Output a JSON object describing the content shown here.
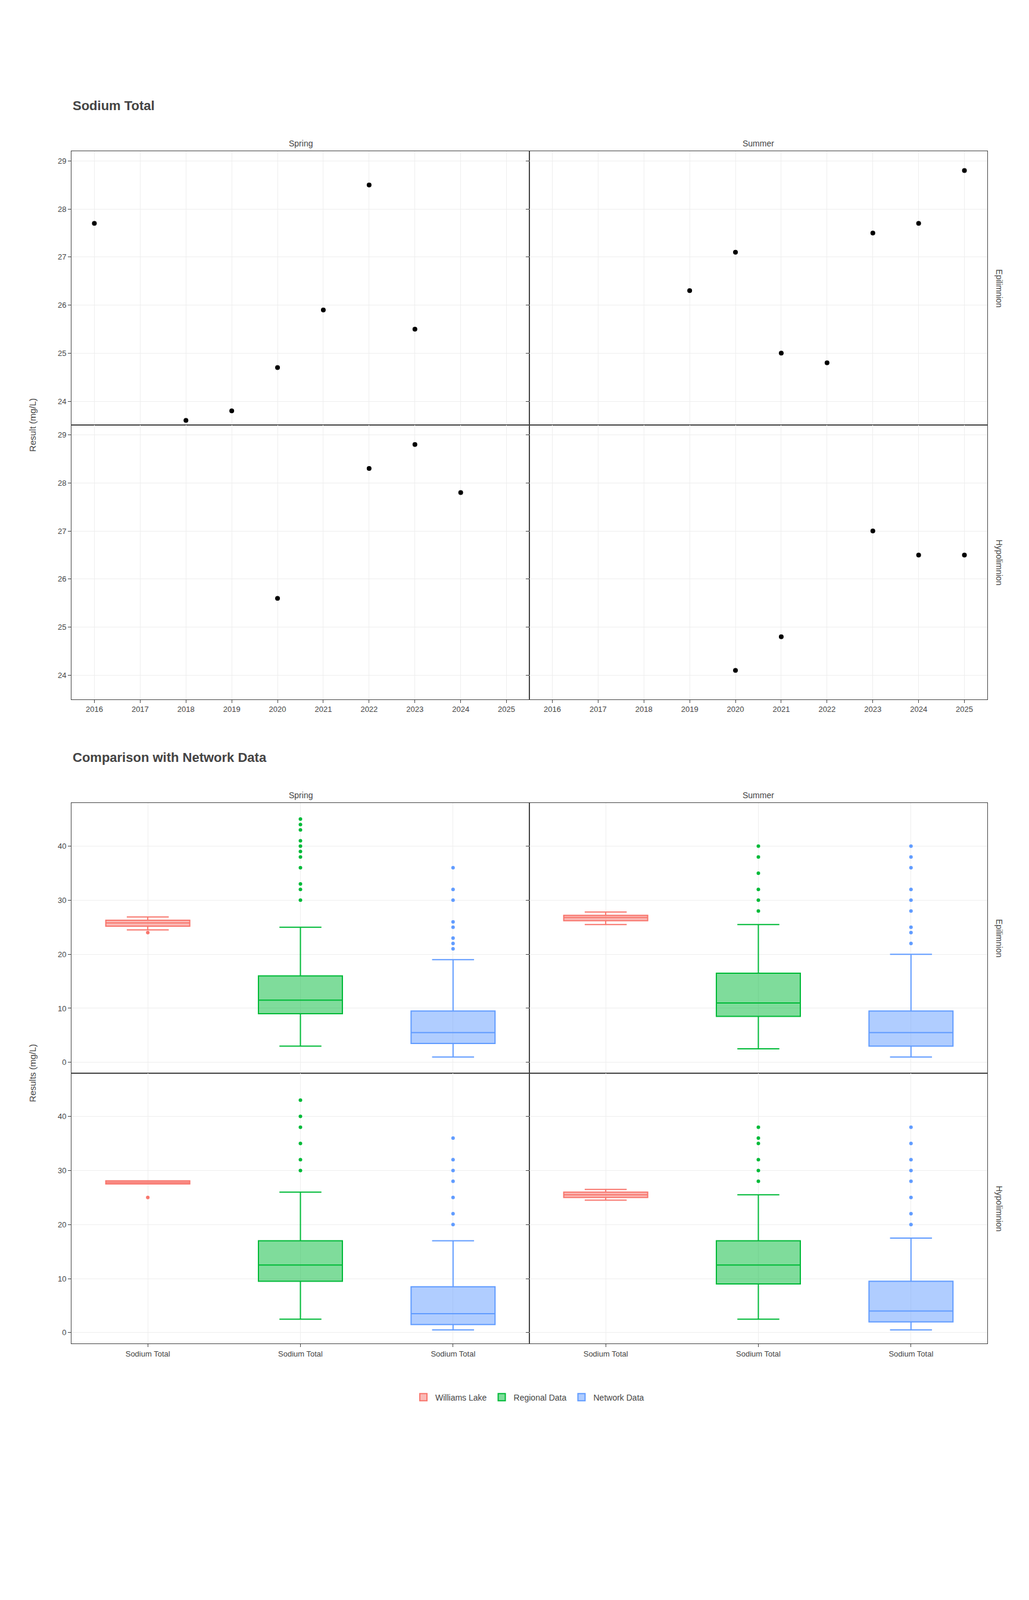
{
  "chart_data": [
    {
      "type": "scatter",
      "title": "Sodium Total",
      "y_label": "Result (mg/L)",
      "color": "#000000",
      "xlim": [
        2015.5,
        2025.5
      ],
      "xticks": [
        2016,
        2017,
        2018,
        2019,
        2020,
        2021,
        2022,
        2023,
        2024,
        2025
      ],
      "ylim": [
        23.5,
        29.2
      ],
      "yticks": [
        24,
        25,
        26,
        27,
        28,
        29
      ],
      "grid": true,
      "panels": [
        {
          "column": "Spring",
          "row": "Epilimnion",
          "x": [
            2016,
            2018,
            2019,
            2020,
            2021,
            2022,
            2023,
            2024
          ],
          "values": [
            27.7,
            23.6,
            23.8,
            24.7,
            25.9,
            28.5,
            25.5,
            null
          ]
        },
        {
          "column": "Summer",
          "row": "Epilimnion",
          "x": [
            2018,
            2019,
            2020,
            2021,
            2022,
            2023,
            2024,
            2025
          ],
          "values": [
            null,
            26.3,
            27.1,
            25.0,
            24.8,
            27.5,
            27.7,
            28.8
          ]
        },
        {
          "column": "Spring",
          "row": "Hypolimnion",
          "x": [
            2016,
            2018,
            2019,
            2020,
            2021,
            2022,
            2023,
            2024
          ],
          "values": [
            null,
            null,
            null,
            25.6,
            null,
            28.3,
            28.8,
            27.8
          ]
        },
        {
          "column": "Summer",
          "row": "Hypolimnion",
          "x": [
            2018,
            2019,
            2020,
            2021,
            2022,
            2023,
            2024,
            2025
          ],
          "values": [
            null,
            null,
            24.1,
            24.8,
            null,
            27.0,
            26.5,
            26.5
          ]
        }
      ]
    },
    {
      "type": "box",
      "title": "Comparison with Network Data",
      "y_label": "Results (mg/L)",
      "categories": [
        "Sodium Total",
        "Sodium Total",
        "Sodium Total"
      ],
      "ylim": [
        -2,
        48
      ],
      "yticks": [
        0,
        10,
        20,
        30,
        40
      ],
      "grid": true,
      "legend": "bottom",
      "panels": [
        {
          "column": "Spring",
          "row": "Epilimnion",
          "series": [
            {
              "name": "Williams Lake",
              "color": "#F8766D",
              "median": 25.8,
              "q1": 25.2,
              "q3": 26.3,
              "whislo": 24.5,
              "whishi": 26.9,
              "fliers": [
                24.0
              ]
            },
            {
              "name": "Regional Data",
              "color": "#00BA38",
              "median": 11.5,
              "q1": 9.0,
              "q3": 16.0,
              "whislo": 3.0,
              "whishi": 25.0,
              "fliers": [
                30.0,
                32.0,
                33.0,
                36.0,
                38.0,
                39.0,
                40.0,
                41.0,
                43.0,
                44.0,
                45.0
              ]
            },
            {
              "name": "Network Data",
              "color": "#619CFF",
              "median": 5.5,
              "q1": 3.5,
              "q3": 9.5,
              "whislo": 1.0,
              "whishi": 19.0,
              "fliers": [
                21.0,
                22.0,
                23.0,
                25.0,
                26.0,
                30.0,
                32.0,
                36.0
              ]
            }
          ]
        },
        {
          "column": "Summer",
          "row": "Epilimnion",
          "series": [
            {
              "name": "Williams Lake",
              "color": "#F8766D",
              "median": 26.8,
              "q1": 26.2,
              "q3": 27.2,
              "whislo": 25.5,
              "whishi": 27.8,
              "fliers": []
            },
            {
              "name": "Regional Data",
              "color": "#00BA38",
              "median": 11.0,
              "q1": 8.5,
              "q3": 16.5,
              "whislo": 2.5,
              "whishi": 25.5,
              "fliers": [
                28.0,
                30.0,
                32.0,
                35.0,
                38.0,
                40.0
              ]
            },
            {
              "name": "Network Data",
              "color": "#619CFF",
              "median": 5.5,
              "q1": 3.0,
              "q3": 9.5,
              "whislo": 1.0,
              "whishi": 20.0,
              "fliers": [
                22.0,
                24.0,
                25.0,
                28.0,
                30.0,
                32.0,
                36.0,
                38.0,
                40.0
              ]
            }
          ]
        },
        {
          "column": "Spring",
          "row": "Hypolimnion",
          "series": [
            {
              "name": "Williams Lake",
              "color": "#F8766D",
              "median": 27.8,
              "q1": 27.5,
              "q3": 28.1,
              "whislo": 27.5,
              "whishi": 28.1,
              "fliers": [
                25.0
              ]
            },
            {
              "name": "Regional Data",
              "color": "#00BA38",
              "median": 12.5,
              "q1": 9.5,
              "q3": 17.0,
              "whislo": 2.5,
              "whishi": 26.0,
              "fliers": [
                30.0,
                32.0,
                35.0,
                38.0,
                40.0,
                43.0
              ]
            },
            {
              "name": "Network Data",
              "color": "#619CFF",
              "median": 3.5,
              "q1": 1.5,
              "q3": 8.5,
              "whislo": 0.5,
              "whishi": 17.0,
              "fliers": [
                20.0,
                22.0,
                25.0,
                28.0,
                30.0,
                32.0,
                36.0
              ]
            }
          ]
        },
        {
          "column": "Summer",
          "row": "Hypolimnion",
          "series": [
            {
              "name": "Williams Lake",
              "color": "#F8766D",
              "median": 25.5,
              "q1": 25.0,
              "q3": 26.0,
              "whislo": 24.5,
              "whishi": 26.5,
              "fliers": []
            },
            {
              "name": "Regional Data",
              "color": "#00BA38",
              "median": 12.5,
              "q1": 9.0,
              "q3": 17.0,
              "whislo": 2.5,
              "whishi": 25.5,
              "fliers": [
                28.0,
                30.0,
                32.0,
                35.0,
                36.0,
                38.0
              ]
            },
            {
              "name": "Network Data",
              "color": "#619CFF",
              "median": 4.0,
              "q1": 2.0,
              "q3": 9.5,
              "whislo": 0.5,
              "whishi": 17.5,
              "fliers": [
                20.0,
                22.0,
                25.0,
                28.0,
                30.0,
                32.0,
                35.0,
                38.0
              ]
            }
          ]
        }
      ]
    }
  ]
}
